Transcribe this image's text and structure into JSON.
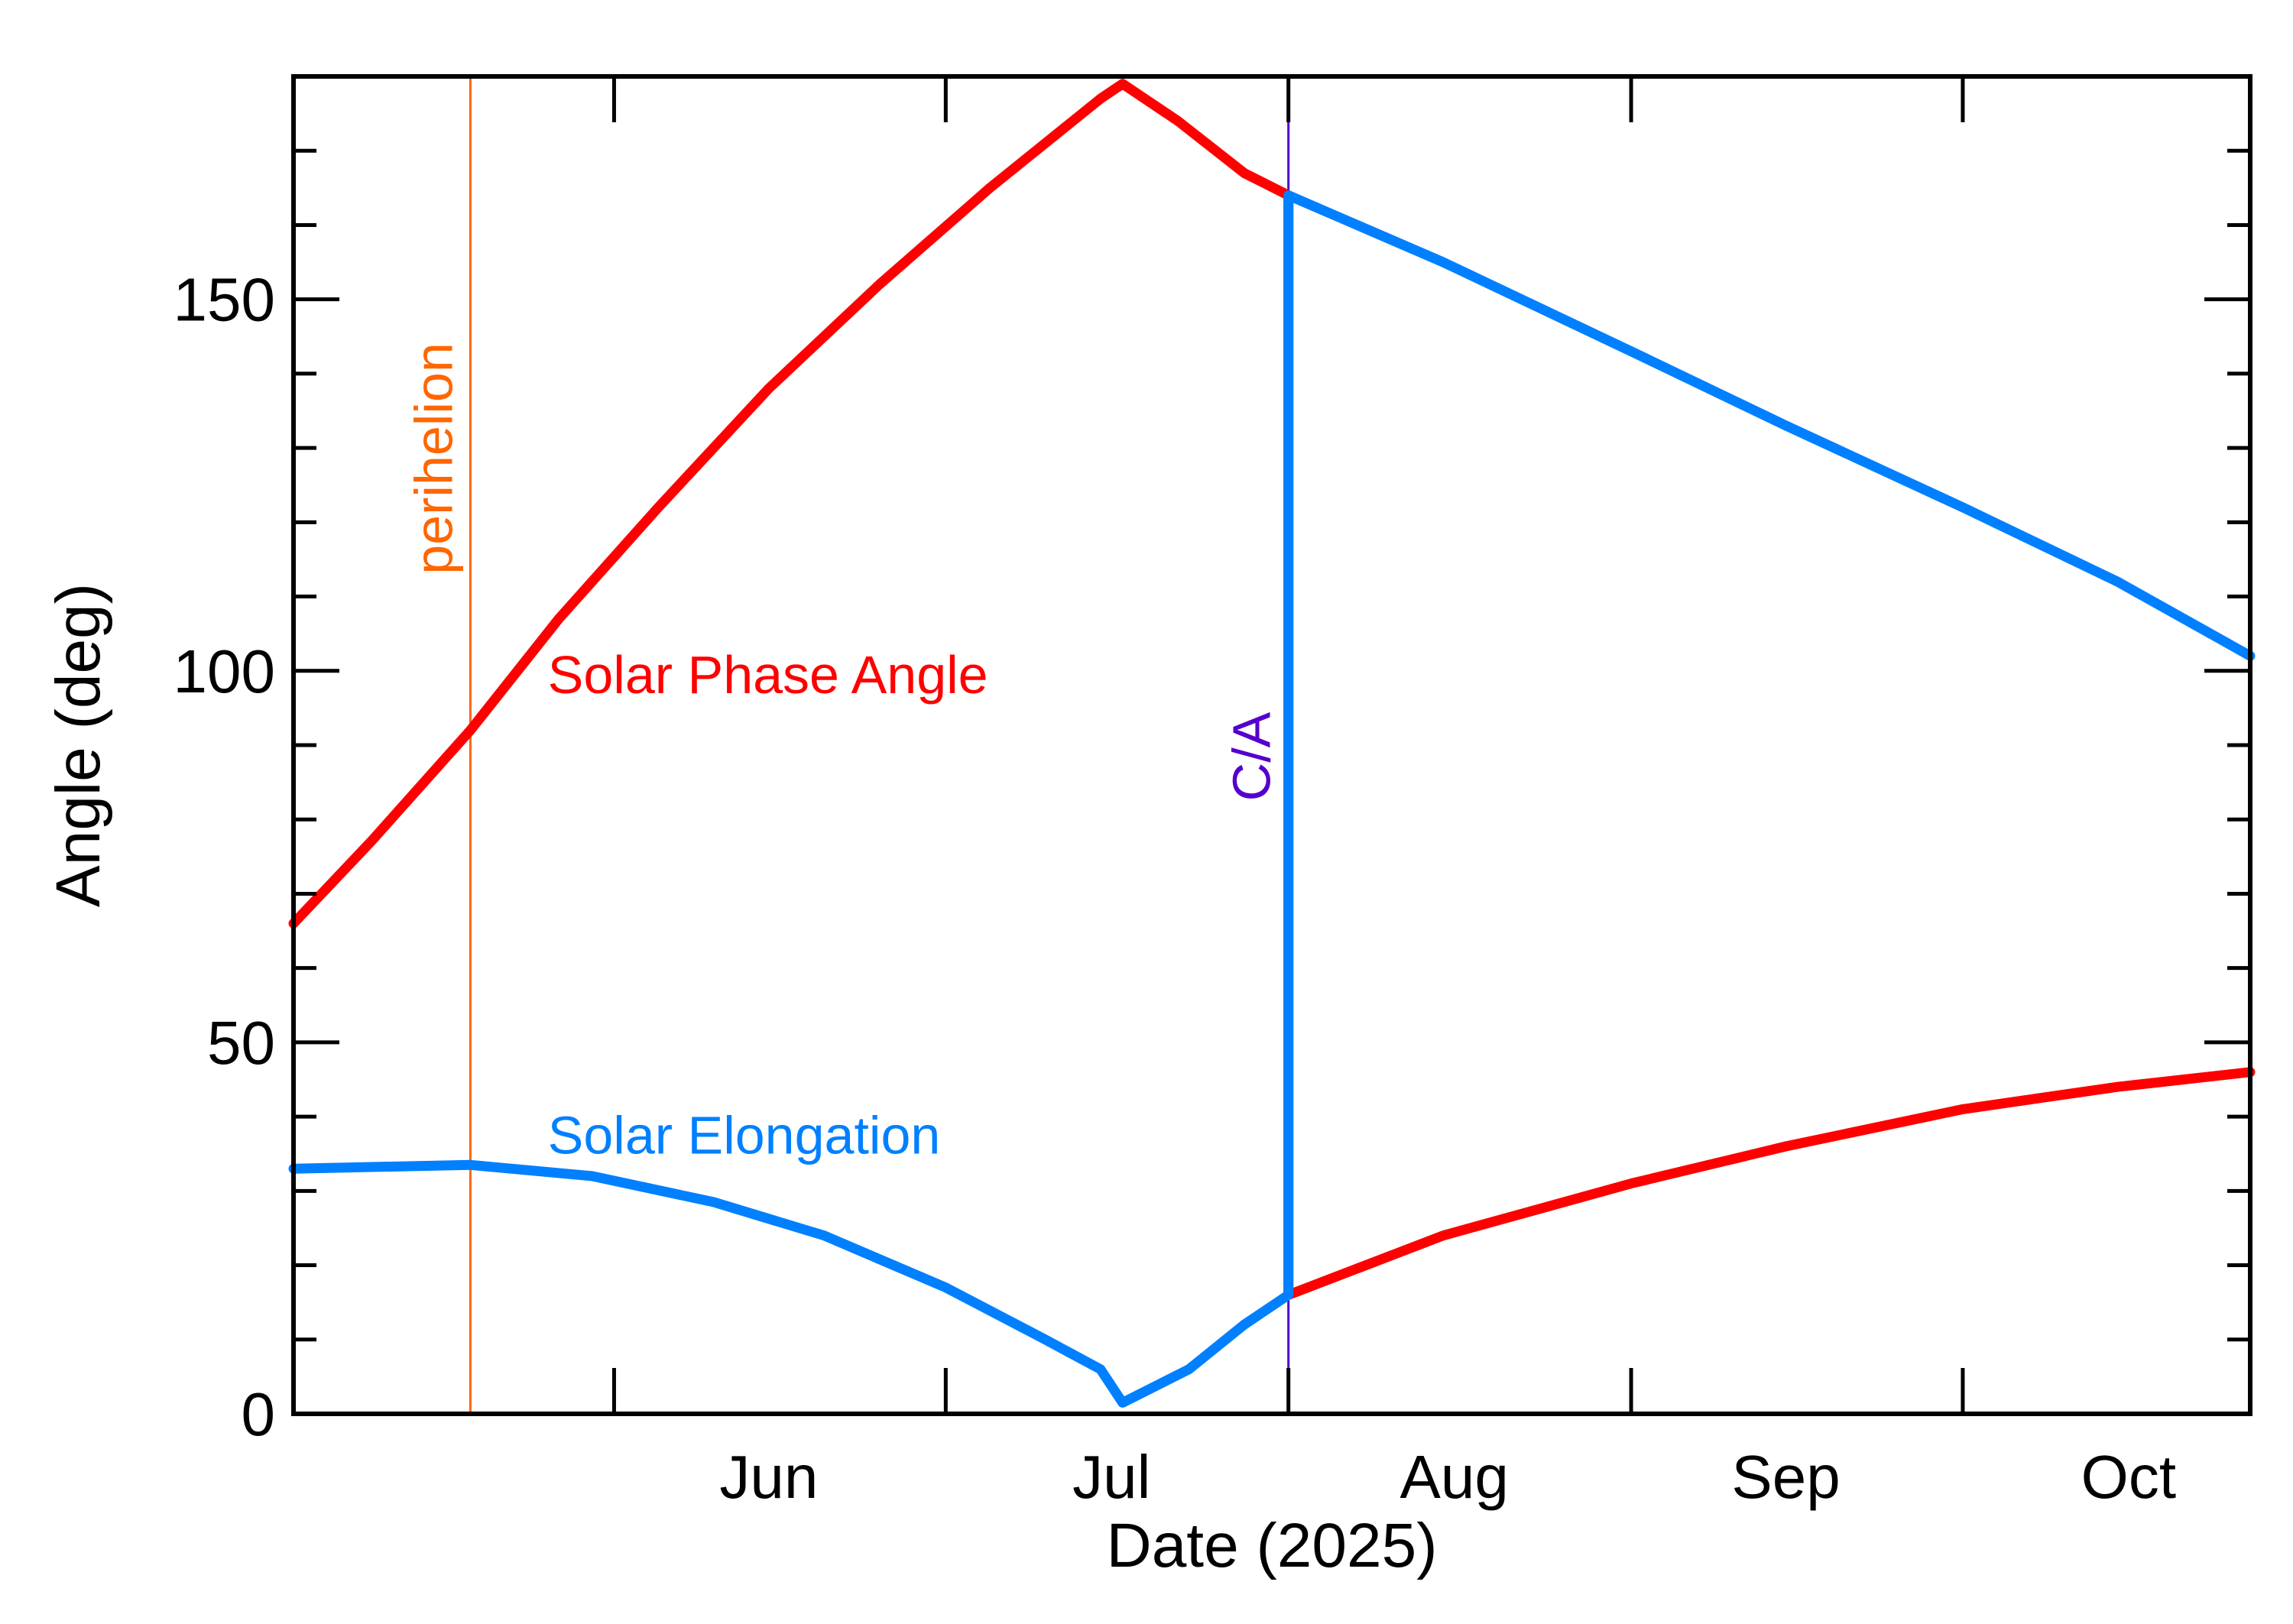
{
  "chart_data": {
    "type": "line",
    "xlabel": "Date (2025)",
    "ylabel": "Angle (deg)",
    "xlim": [
      "2025-05-03",
      "2025-10-27"
    ],
    "ylim": [
      0,
      180
    ],
    "y_ticks": [
      0,
      50,
      100,
      150
    ],
    "x_month_labels": [
      {
        "label": "Jun",
        "date": "2025-06-15"
      },
      {
        "label": "Jul",
        "date": "2025-07-16"
      },
      {
        "label": "Aug",
        "date": "2025-08-16"
      },
      {
        "label": "Sep",
        "date": "2025-09-15"
      },
      {
        "label": "Oct",
        "date": "2025-10-16"
      }
    ],
    "x_major_ticks": [
      "2025-06-01",
      "2025-07-01",
      "2025-08-01",
      "2025-09-01",
      "2025-10-01"
    ],
    "grid": false,
    "series": [
      {
        "name": "Solar Phase Angle",
        "color": "#ff0000",
        "points": [
          [
            "2025-05-03",
            66
          ],
          [
            "2025-05-10",
            77
          ],
          [
            "2025-05-19",
            92
          ],
          [
            "2025-05-27",
            107
          ],
          [
            "2025-06-05",
            122
          ],
          [
            "2025-06-15",
            138
          ],
          [
            "2025-06-25",
            152
          ],
          [
            "2025-07-05",
            165
          ],
          [
            "2025-07-15",
            177
          ],
          [
            "2025-07-17",
            179
          ],
          [
            "2025-07-22",
            174
          ],
          [
            "2025-07-28",
            167
          ],
          [
            "2025-08-01",
            164
          ],
          [
            "2025-08-01",
            16
          ],
          [
            "2025-08-15",
            24
          ],
          [
            "2025-09-01",
            31
          ],
          [
            "2025-09-15",
            36
          ],
          [
            "2025-10-01",
            41
          ],
          [
            "2025-10-15",
            44
          ],
          [
            "2025-10-27",
            46
          ]
        ]
      },
      {
        "name": "Solar Elongation",
        "color": "#0080ff",
        "points": [
          [
            "2025-05-03",
            33
          ],
          [
            "2025-05-19",
            33.5
          ],
          [
            "2025-05-30",
            32
          ],
          [
            "2025-06-10",
            28.5
          ],
          [
            "2025-06-20",
            24
          ],
          [
            "2025-07-01",
            17
          ],
          [
            "2025-07-10",
            10
          ],
          [
            "2025-07-15",
            6
          ],
          [
            "2025-07-17",
            1.5
          ],
          [
            "2025-07-23",
            6
          ],
          [
            "2025-07-28",
            12
          ],
          [
            "2025-08-01",
            16
          ],
          [
            "2025-08-01",
            164
          ],
          [
            "2025-08-15",
            155
          ],
          [
            "2025-09-01",
            143
          ],
          [
            "2025-09-15",
            133
          ],
          [
            "2025-10-01",
            122
          ],
          [
            "2025-10-15",
            112
          ],
          [
            "2025-10-27",
            102
          ]
        ]
      }
    ],
    "annotations": {
      "series_labels": [
        {
          "text": "Solar Phase Angle",
          "color": "#ff0000",
          "at": [
            "2025-05-26",
            97
          ]
        },
        {
          "text": "Solar Elongation",
          "color": "#0080ff",
          "at": [
            "2025-05-26",
            35
          ]
        }
      ],
      "vertical_lines": [
        {
          "label": "perihelion",
          "date": "2025-05-19",
          "color": "#ff6600"
        },
        {
          "label": "C/A",
          "date": "2025-08-01",
          "color": "#5500cc"
        }
      ]
    }
  }
}
